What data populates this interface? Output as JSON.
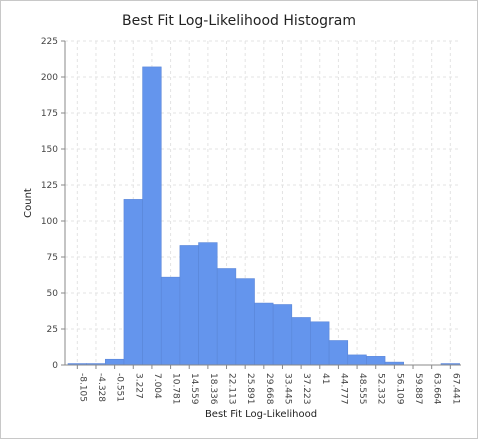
{
  "chart_data": {
    "type": "bar",
    "title": "Best Fit Log-Likelihood Histogram",
    "xlabel": "Best Fit Log-Likelihood",
    "ylabel": "Count",
    "ylim": [
      0,
      225
    ],
    "yticks": [
      0,
      25,
      50,
      75,
      100,
      125,
      150,
      175,
      200,
      225
    ],
    "categories": [
      "-8.105",
      "-4.328",
      "-0.551",
      "3.227",
      "7.004",
      "10.781",
      "14.559",
      "18.336",
      "22.113",
      "25.891",
      "29.668",
      "33.445",
      "37.223",
      "41",
      "44.777",
      "48.555",
      "52.332",
      "56.109",
      "59.887",
      "63.664",
      "67.441"
    ],
    "values": [
      1,
      1,
      4,
      115,
      207,
      61,
      83,
      85,
      67,
      60,
      43,
      42,
      33,
      30,
      17,
      7,
      6,
      2,
      0,
      0,
      1
    ],
    "bar_color": "#6495ed",
    "grid": true,
    "grid_color": "#e3e3e3"
  }
}
